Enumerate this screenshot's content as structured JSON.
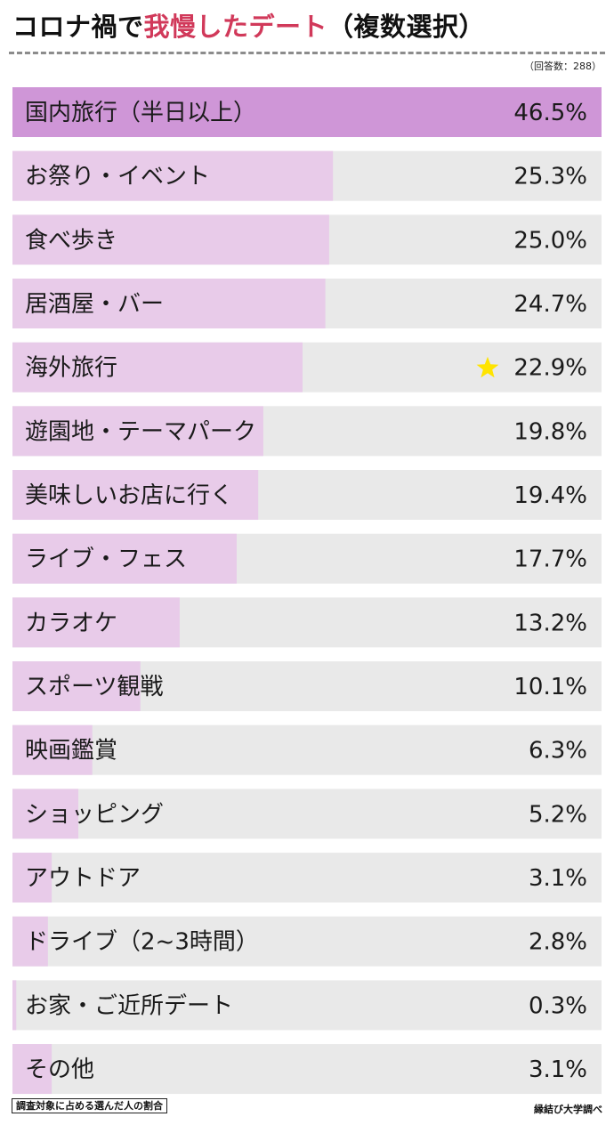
{
  "header": {
    "title_part1": "コロナ禍で",
    "title_accent": "我慢したデート",
    "title_part2": "（複数選択）",
    "sample_size": "（回答数：288）"
  },
  "footer": {
    "note": "調査対象に占める選んだ人の割合",
    "source": "縁結び大学調べ"
  },
  "colors": {
    "bar_highlight": "#cf96d7",
    "bar": "#e8cbe9",
    "track": "#e9e9e9",
    "star": "#ffe400",
    "accent_title": "#d1395a"
  },
  "chart_data": {
    "type": "bar",
    "orientation": "horizontal",
    "categories": [
      "国内旅行（半日以上）",
      "お祭り・イベント",
      "食べ歩き",
      "居酒屋・バー",
      "海外旅行",
      "遊園地・テーマパーク",
      "美味しいお店に行く",
      "ライブ・フェス",
      "カラオケ",
      "スポーツ観戦",
      "映画鑑賞",
      "ショッピング",
      "アウトドア",
      "ドライブ（2~3時間）",
      "お家・ご近所デート",
      "その他"
    ],
    "values": [
      46.5,
      25.3,
      25.0,
      24.7,
      22.9,
      19.8,
      19.4,
      17.7,
      13.2,
      10.1,
      6.3,
      5.2,
      3.1,
      2.8,
      0.3,
      3.1
    ],
    "value_labels": [
      "46.5%",
      "25.3%",
      "25.0%",
      "24.7%",
      "22.9%",
      "19.8%",
      "19.4%",
      "17.7%",
      "13.2%",
      "10.1%",
      "6.3%",
      "5.2%",
      "3.1%",
      "2.8%",
      "0.3%",
      "3.1%"
    ],
    "xlim": [
      0,
      46.5
    ],
    "highlight_index": 0,
    "star_index": 4,
    "grid": false,
    "legend": "none"
  }
}
